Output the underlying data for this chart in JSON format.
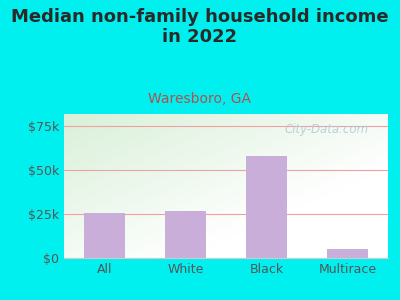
{
  "title": "Median non-family household income\nin 2022",
  "subtitle": "Waresboro, GA",
  "categories": [
    "All",
    "White",
    "Black",
    "Multirace"
  ],
  "values": [
    25500,
    26500,
    58000,
    5000
  ],
  "bar_color": "#c8aed8",
  "title_fontsize": 13,
  "subtitle_fontsize": 10,
  "subtitle_color": "#b05050",
  "title_color": "#2a2a2a",
  "tick_label_color": "#555555",
  "yticks": [
    0,
    25000,
    50000,
    75000
  ],
  "ytick_labels": [
    "$0",
    "$25k",
    "$50k",
    "$75k"
  ],
  "ylim": [
    0,
    82000
  ],
  "background_outer": "#00f0f0",
  "plot_bg_green": "#d8efd8",
  "plot_bg_white": "#ffffff",
  "grid_color": "#f0a0a0",
  "watermark": "City-Data.com",
  "watermark_color": "#b0c8d8"
}
